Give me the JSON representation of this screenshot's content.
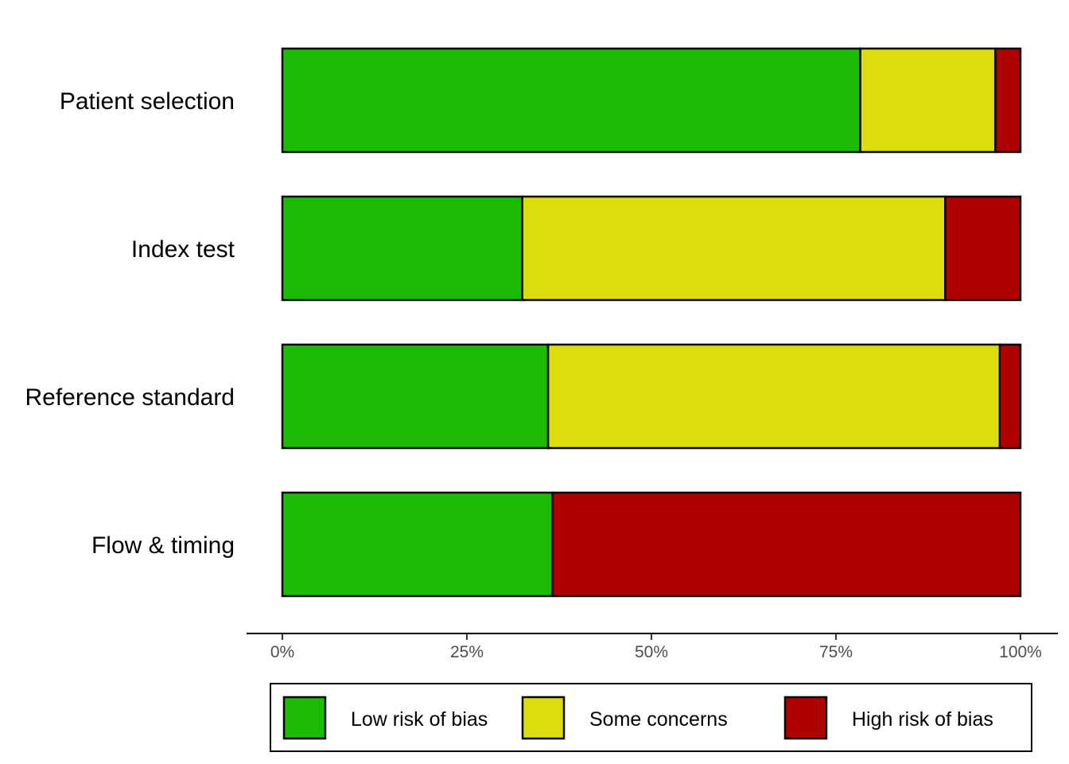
{
  "chart_data": {
    "type": "bar",
    "orientation": "horizontal",
    "stacked": true,
    "categories": [
      "Patient selection",
      "Index test",
      "Reference standard",
      "Flow & timing"
    ],
    "series": [
      {
        "name": "Low risk of bias",
        "color": "#1cbb06",
        "values": [
          78.3,
          32.5,
          36.0,
          36.6
        ]
      },
      {
        "name": "Some concerns",
        "color": "#dddd0e",
        "values": [
          18.3,
          57.3,
          61.2,
          0
        ]
      },
      {
        "name": "High risk of bias",
        "color": "#af0000",
        "values": [
          3.4,
          10.2,
          2.8,
          63.4
        ]
      }
    ],
    "xticks": [
      0,
      25,
      50,
      75,
      100
    ],
    "xtick_labels": [
      "0%",
      "25%",
      "50%",
      "75%",
      "100%"
    ],
    "xlim": [
      0,
      100
    ],
    "title": "",
    "xlabel": "",
    "ylabel": "",
    "legend": "bottom",
    "grid": false
  }
}
